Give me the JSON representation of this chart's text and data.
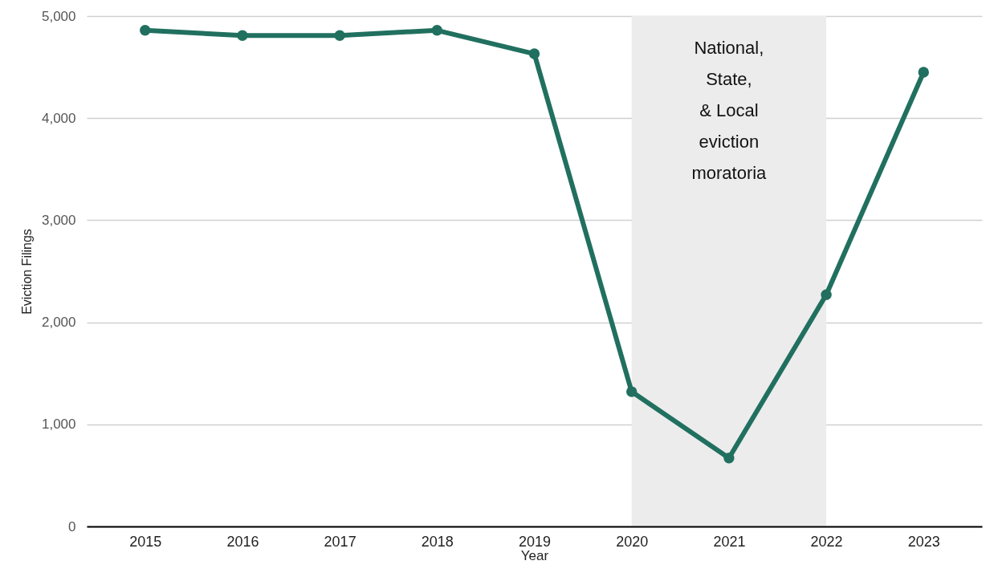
{
  "chart_data": {
    "type": "line",
    "xlabel": "Year",
    "ylabel": "Eviction Filings",
    "categories": [
      "2015",
      "2016",
      "2017",
      "2018",
      "2019",
      "2020",
      "2021",
      "2022",
      "2023"
    ],
    "series": [
      {
        "color": "#21705f",
        "values": [
          4860,
          4810,
          4810,
          4860,
          4630,
          1320,
          670,
          2270,
          4450
        ]
      }
    ],
    "ylim": [
      0,
      5000
    ],
    "yticks": [
      0,
      {
        "value": 1000,
        "label": "1,000"
      },
      {
        "value": 2000,
        "label": "2,000"
      },
      {
        "value": 3000,
        "label": "3,000"
      },
      {
        "value": 4000,
        "label": "4,000"
      },
      {
        "value": 5000,
        "label": "5,000"
      }
    ],
    "grid": "y",
    "marker": "circle",
    "line_style": "solid",
    "bands": [
      {
        "axis": "x",
        "from": "2020",
        "to": "2022",
        "label": "National,\nState,\n& Local\neviction\nmoratoria",
        "color": "#ececec"
      }
    ]
  }
}
